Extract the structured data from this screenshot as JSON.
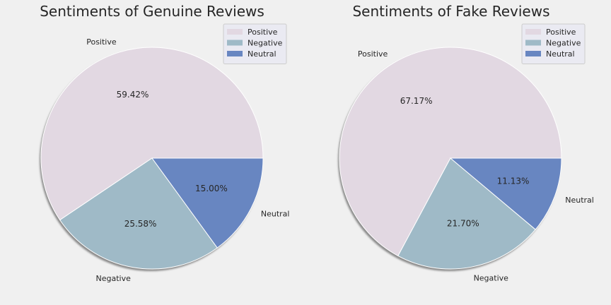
{
  "chart_data": [
    {
      "type": "pie",
      "title": "Sentiments of Genuine Reviews",
      "categories": [
        "Positive",
        "Negative",
        "Neutral"
      ],
      "values": [
        59.42,
        25.58,
        15.0
      ],
      "value_labels": [
        "59.42%",
        "25.58%",
        "15.00%"
      ],
      "colors": [
        "#e2d8e2",
        "#9fbac7",
        "#6886c1"
      ],
      "shadow": true,
      "legend": {
        "placement": "top-right",
        "entries": [
          "Positive",
          "Negative",
          "Neutral"
        ]
      }
    },
    {
      "type": "pie",
      "title": "Sentiments of Fake Reviews",
      "categories": [
        "Positive",
        "Negative",
        "Neutral"
      ],
      "values": [
        67.17,
        21.7,
        11.13
      ],
      "value_labels": [
        "67.17%",
        "21.70%",
        "11.13%"
      ],
      "colors": [
        "#e2d8e2",
        "#9fbac7",
        "#6886c1"
      ],
      "shadow": true,
      "legend": {
        "placement": "top-right",
        "entries": [
          "Positive",
          "Negative",
          "Neutral"
        ]
      }
    }
  ]
}
